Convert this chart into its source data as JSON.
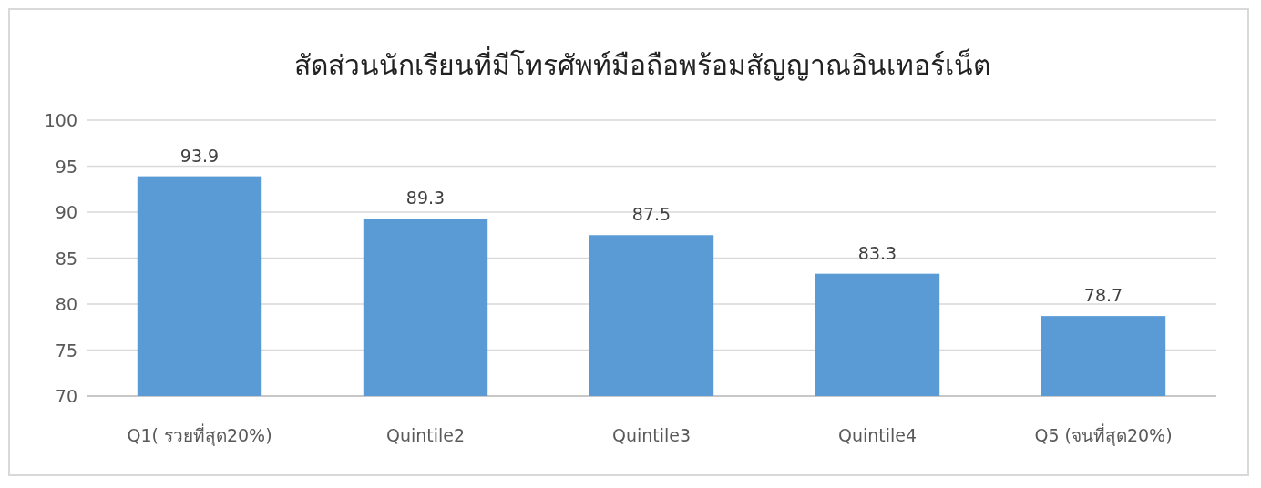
{
  "chart_data": {
    "type": "bar",
    "title": "สัดส่วนนักเรียนที่มีโทรศัพท์มือถือพร้อมสัญญาณอินเทอร์เน็ต",
    "categories": [
      "Q1( รวยที่สุด20%)",
      "Quintile2",
      "Quintile3",
      "Quintile4",
      "Q5 (จนที่สุด20%)"
    ],
    "values": [
      93.9,
      89.3,
      87.5,
      83.3,
      78.7
    ],
    "color": "#5b9bd5",
    "ylim": [
      70,
      100
    ],
    "yticks": [
      70,
      75,
      80,
      85,
      90,
      95,
      100
    ],
    "grid": "y",
    "data_labels": true
  }
}
